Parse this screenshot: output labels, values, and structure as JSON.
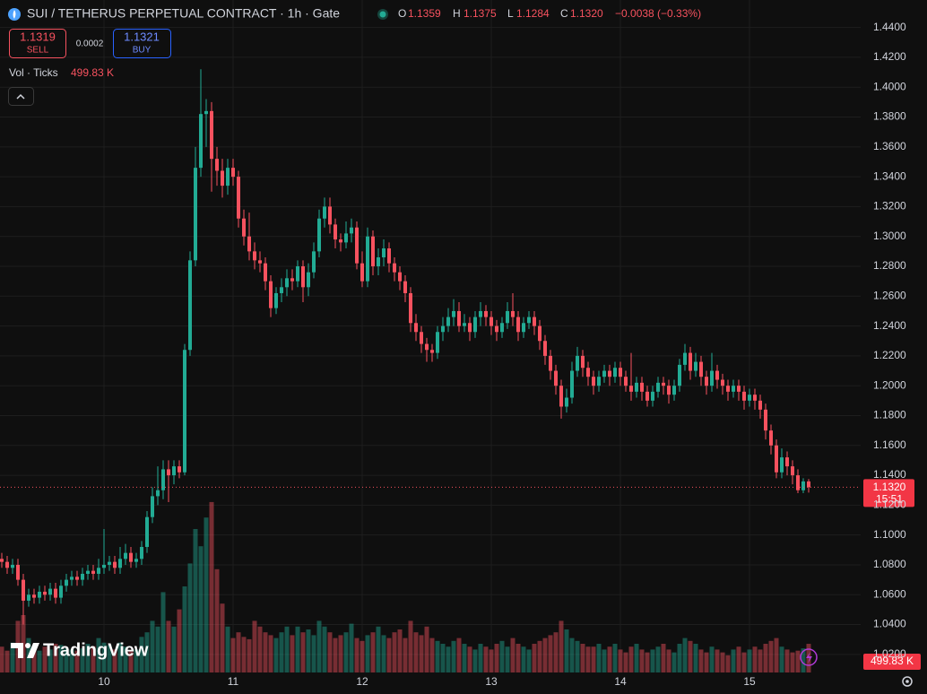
{
  "header": {
    "title": "SUI / TETHERUS PERPETUAL CONTRACT · 1h · Gate",
    "ohlc": [
      {
        "key": "O",
        "value": "1.1359"
      },
      {
        "key": "H",
        "value": "1.1375"
      },
      {
        "key": "L",
        "value": "1.1284"
      },
      {
        "key": "C",
        "value": "1.1320"
      }
    ],
    "change": "−0.0038 (−0.33%)",
    "sell": {
      "price": "1.1319",
      "label": "SELL"
    },
    "spread": "0.0002",
    "buy": {
      "price": "1.1321",
      "label": "BUY"
    },
    "volume_legend": {
      "label": "Vol · Ticks",
      "value": "499.83 K"
    }
  },
  "price_tag": {
    "price": "1.1320",
    "countdown": "15:51"
  },
  "volume_tag": "499.83 K",
  "brand": "TradingView",
  "chart_data": {
    "type": "candlestick",
    "up_color": "#22ab94",
    "down_color": "#f7525f",
    "grid": true,
    "ylim": [
      1.0079,
      1.4584
    ],
    "volume_lim": [
      0,
      4500
    ],
    "yticks": [
      {
        "value": 1.02,
        "label": "1.0200"
      },
      {
        "value": 1.04,
        "label": "1.0400"
      },
      {
        "value": 1.06,
        "label": "1.0600"
      },
      {
        "value": 1.08,
        "label": "1.0800"
      },
      {
        "value": 1.1,
        "label": "1.1000"
      },
      {
        "value": 1.12,
        "label": "1.1200"
      },
      {
        "value": 1.14,
        "label": "1.1400"
      },
      {
        "value": 1.16,
        "label": "1.1600"
      },
      {
        "value": 1.18,
        "label": "1.1800"
      },
      {
        "value": 1.2,
        "label": "1.2000"
      },
      {
        "value": 1.22,
        "label": "1.2200"
      },
      {
        "value": 1.24,
        "label": "1.2400"
      },
      {
        "value": 1.26,
        "label": "1.2600"
      },
      {
        "value": 1.28,
        "label": "1.2800"
      },
      {
        "value": 1.3,
        "label": "1.3000"
      },
      {
        "value": 1.32,
        "label": "1.3200"
      },
      {
        "value": 1.34,
        "label": "1.3400"
      },
      {
        "value": 1.36,
        "label": "1.3600"
      },
      {
        "value": 1.38,
        "label": "1.3800"
      },
      {
        "value": 1.4,
        "label": "1.4000"
      },
      {
        "value": 1.42,
        "label": "1.4200"
      },
      {
        "value": 1.44,
        "label": "1.4400"
      }
    ],
    "categories": [
      null,
      null,
      null,
      null,
      null,
      null,
      null,
      null,
      null,
      null,
      null,
      null,
      null,
      null,
      null,
      null,
      null,
      null,
      null,
      "10",
      null,
      null,
      null,
      null,
      null,
      null,
      null,
      null,
      null,
      null,
      null,
      null,
      null,
      null,
      null,
      null,
      null,
      null,
      null,
      null,
      null,
      null,
      null,
      "11",
      null,
      null,
      null,
      null,
      null,
      null,
      null,
      null,
      null,
      null,
      null,
      null,
      null,
      null,
      null,
      null,
      null,
      null,
      null,
      null,
      null,
      null,
      null,
      "12",
      null,
      null,
      null,
      null,
      null,
      null,
      null,
      null,
      null,
      null,
      null,
      null,
      null,
      null,
      null,
      null,
      null,
      null,
      null,
      null,
      null,
      null,
      null,
      "13",
      null,
      null,
      null,
      null,
      null,
      null,
      null,
      null,
      null,
      null,
      null,
      null,
      null,
      null,
      null,
      null,
      null,
      null,
      null,
      null,
      null,
      null,
      null,
      "14",
      null,
      null,
      null,
      null,
      null,
      null,
      null,
      null,
      null,
      null,
      null,
      null,
      null,
      null,
      null,
      null,
      null,
      null,
      null,
      null,
      null,
      null,
      null,
      "15",
      null,
      null,
      null,
      null,
      null,
      null,
      null,
      null,
      null,
      null,
      null
    ],
    "open": [
      1.084,
      1.082,
      1.078,
      1.08,
      1.07,
      1.056,
      1.06,
      1.058,
      1.062,
      1.06,
      1.064,
      1.058,
      1.066,
      1.07,
      1.072,
      1.07,
      1.074,
      1.076,
      1.074,
      1.078,
      1.08,
      1.082,
      1.078,
      1.084,
      1.088,
      1.082,
      1.084,
      1.092,
      1.112,
      1.126,
      1.13,
      1.144,
      1.14,
      1.146,
      1.142,
      1.224,
      1.284,
      1.346,
      1.382,
      1.384,
      1.352,
      1.344,
      1.334,
      1.346,
      1.34,
      1.312,
      1.3,
      1.29,
      1.284,
      1.282,
      1.27,
      1.252,
      1.262,
      1.266,
      1.272,
      1.27,
      1.28,
      1.266,
      1.276,
      1.29,
      1.312,
      1.32,
      1.308,
      1.298,
      1.296,
      1.302,
      1.306,
      1.282,
      1.27,
      1.3,
      1.28,
      1.286,
      1.292,
      1.282,
      1.276,
      1.27,
      1.262,
      1.242,
      1.236,
      1.228,
      1.224,
      1.222,
      1.236,
      1.24,
      1.246,
      1.25,
      1.24,
      1.242,
      1.236,
      1.246,
      1.25,
      1.246,
      1.24,
      1.236,
      1.242,
      1.25,
      1.246,
      1.236,
      1.242,
      1.246,
      1.24,
      1.23,
      1.22,
      1.21,
      1.2,
      1.186,
      1.192,
      1.21,
      1.22,
      1.212,
      1.206,
      1.2,
      1.206,
      1.21,
      1.206,
      1.212,
      1.206,
      1.2,
      1.196,
      1.202,
      1.196,
      1.19,
      1.196,
      1.202,
      1.2,
      1.194,
      1.2,
      1.214,
      1.222,
      1.21,
      1.216,
      1.206,
      1.2,
      1.21,
      1.204,
      1.2,
      1.196,
      1.2,
      1.196,
      1.19,
      1.194,
      1.19,
      1.184,
      1.17,
      1.16,
      1.142,
      1.152,
      1.146,
      1.14,
      1.13,
      1.1359
    ],
    "high": [
      1.088,
      1.086,
      1.084,
      1.084,
      1.074,
      1.064,
      1.064,
      1.066,
      1.066,
      1.068,
      1.068,
      1.07,
      1.074,
      1.076,
      1.076,
      1.078,
      1.08,
      1.08,
      1.084,
      1.104,
      1.086,
      1.086,
      1.092,
      1.094,
      1.092,
      1.088,
      1.096,
      1.116,
      1.132,
      1.146,
      1.15,
      1.15,
      1.15,
      1.15,
      1.228,
      1.29,
      1.36,
      1.412,
      1.392,
      1.39,
      1.36,
      1.352,
      1.352,
      1.352,
      1.344,
      1.318,
      1.316,
      1.296,
      1.29,
      1.286,
      1.274,
      1.266,
      1.272,
      1.278,
      1.278,
      1.284,
      1.284,
      1.282,
      1.296,
      1.318,
      1.326,
      1.326,
      1.312,
      1.302,
      1.31,
      1.312,
      1.31,
      1.29,
      1.306,
      1.304,
      1.292,
      1.298,
      1.296,
      1.286,
      1.28,
      1.274,
      1.266,
      1.248,
      1.24,
      1.232,
      1.228,
      1.24,
      1.246,
      1.252,
      1.258,
      1.256,
      1.248,
      1.246,
      1.25,
      1.256,
      1.254,
      1.25,
      1.244,
      1.246,
      1.256,
      1.262,
      1.25,
      1.246,
      1.25,
      1.25,
      1.244,
      1.234,
      1.224,
      1.214,
      1.204,
      1.198,
      1.216,
      1.226,
      1.224,
      1.216,
      1.21,
      1.21,
      1.214,
      1.214,
      1.216,
      1.216,
      1.21,
      1.222,
      1.206,
      1.206,
      1.2,
      1.2,
      1.206,
      1.206,
      1.204,
      1.204,
      1.218,
      1.228,
      1.226,
      1.222,
      1.22,
      1.21,
      1.222,
      1.214,
      1.208,
      1.204,
      1.204,
      1.204,
      1.2,
      1.198,
      1.198,
      1.194,
      1.188,
      1.174,
      1.164,
      1.158,
      1.156,
      1.15,
      1.144,
      1.138,
      1.1375
    ],
    "low": [
      1.078,
      1.074,
      1.074,
      1.066,
      1.04,
      1.052,
      1.054,
      1.054,
      1.056,
      1.056,
      1.054,
      1.054,
      1.062,
      1.066,
      1.066,
      1.066,
      1.07,
      1.07,
      1.07,
      1.074,
      1.076,
      1.074,
      1.074,
      1.08,
      1.078,
      1.078,
      1.08,
      1.088,
      1.108,
      1.12,
      1.124,
      1.122,
      1.134,
      1.138,
      1.14,
      1.22,
      1.28,
      1.34,
      1.36,
      1.33,
      1.334,
      1.326,
      1.328,
      1.334,
      1.306,
      1.294,
      1.284,
      1.278,
      1.276,
      1.264,
      1.246,
      1.248,
      1.256,
      1.26,
      1.264,
      1.266,
      1.256,
      1.26,
      1.272,
      1.286,
      1.306,
      1.302,
      1.292,
      1.29,
      1.292,
      1.296,
      1.278,
      1.266,
      1.266,
      1.274,
      1.274,
      1.28,
      1.276,
      1.27,
      1.264,
      1.256,
      1.236,
      1.23,
      1.222,
      1.216,
      1.216,
      1.218,
      1.23,
      1.236,
      1.24,
      1.236,
      1.236,
      1.23,
      1.232,
      1.24,
      1.24,
      1.234,
      1.23,
      1.232,
      1.238,
      1.24,
      1.23,
      1.232,
      1.238,
      1.234,
      1.224,
      1.214,
      1.204,
      1.194,
      1.178,
      1.182,
      1.188,
      1.206,
      1.206,
      1.2,
      1.194,
      1.196,
      1.202,
      1.2,
      1.202,
      1.2,
      1.196,
      1.19,
      1.192,
      1.19,
      1.186,
      1.186,
      1.192,
      1.194,
      1.188,
      1.19,
      1.196,
      1.21,
      1.204,
      1.206,
      1.2,
      1.194,
      1.196,
      1.198,
      1.194,
      1.19,
      1.192,
      1.19,
      1.184,
      1.186,
      1.184,
      1.178,
      1.164,
      1.154,
      1.138,
      1.138,
      1.14,
      1.134,
      1.128,
      1.128,
      1.1284
    ],
    "close": [
      1.082,
      1.078,
      1.08,
      1.07,
      1.056,
      1.06,
      1.058,
      1.062,
      1.06,
      1.064,
      1.058,
      1.066,
      1.07,
      1.072,
      1.07,
      1.074,
      1.076,
      1.074,
      1.078,
      1.08,
      1.082,
      1.078,
      1.084,
      1.088,
      1.082,
      1.084,
      1.092,
      1.112,
      1.126,
      1.13,
      1.144,
      1.14,
      1.146,
      1.142,
      1.224,
      1.284,
      1.346,
      1.382,
      1.384,
      1.352,
      1.344,
      1.334,
      1.346,
      1.34,
      1.312,
      1.3,
      1.29,
      1.284,
      1.282,
      1.27,
      1.252,
      1.262,
      1.266,
      1.272,
      1.27,
      1.28,
      1.266,
      1.276,
      1.29,
      1.312,
      1.32,
      1.308,
      1.298,
      1.296,
      1.302,
      1.306,
      1.282,
      1.27,
      1.3,
      1.28,
      1.286,
      1.292,
      1.282,
      1.276,
      1.27,
      1.262,
      1.242,
      1.236,
      1.228,
      1.224,
      1.222,
      1.236,
      1.24,
      1.246,
      1.25,
      1.24,
      1.242,
      1.236,
      1.246,
      1.25,
      1.246,
      1.24,
      1.236,
      1.242,
      1.25,
      1.246,
      1.236,
      1.242,
      1.246,
      1.24,
      1.23,
      1.22,
      1.21,
      1.2,
      1.186,
      1.192,
      1.21,
      1.22,
      1.212,
      1.206,
      1.2,
      1.206,
      1.21,
      1.206,
      1.212,
      1.206,
      1.2,
      1.196,
      1.202,
      1.196,
      1.19,
      1.196,
      1.202,
      1.2,
      1.194,
      1.2,
      1.214,
      1.222,
      1.21,
      1.216,
      1.206,
      1.2,
      1.21,
      1.204,
      1.2,
      1.196,
      1.2,
      1.196,
      1.19,
      1.194,
      1.19,
      1.184,
      1.17,
      1.16,
      1.142,
      1.152,
      1.146,
      1.14,
      1.13,
      1.1359,
      1.132
    ],
    "volume": [
      450,
      380,
      520,
      900,
      1000,
      600,
      420,
      380,
      450,
      400,
      500,
      480,
      420,
      400,
      380,
      420,
      500,
      460,
      600,
      520,
      480,
      400,
      520,
      450,
      380,
      400,
      620,
      700,
      900,
      800,
      1400,
      900,
      800,
      1100,
      1500,
      1900,
      2500,
      2200,
      2700,
      2970,
      1800,
      1200,
      800,
      600,
      700,
      620,
      580,
      900,
      800,
      700,
      650,
      600,
      700,
      800,
      650,
      800,
      700,
      750,
      650,
      900,
      800,
      700,
      600,
      650,
      700,
      850,
      600,
      550,
      650,
      700,
      800,
      650,
      600,
      700,
      750,
      600,
      900,
      700,
      650,
      800,
      600,
      550,
      500,
      450,
      550,
      600,
      500,
      450,
      400,
      500,
      450,
      400,
      500,
      550,
      450,
      600,
      500,
      450,
      400,
      500,
      550,
      600,
      650,
      700,
      900,
      750,
      600,
      550,
      500,
      450,
      450,
      500,
      400,
      450,
      500,
      400,
      350,
      450,
      500,
      400,
      350,
      400,
      450,
      500,
      400,
      350,
      500,
      600,
      550,
      500,
      400,
      350,
      450,
      400,
      350,
      300,
      400,
      450,
      350,
      400,
      450,
      400,
      500,
      550,
      600,
      450,
      400,
      350,
      380,
      420,
      499.83
    ]
  }
}
